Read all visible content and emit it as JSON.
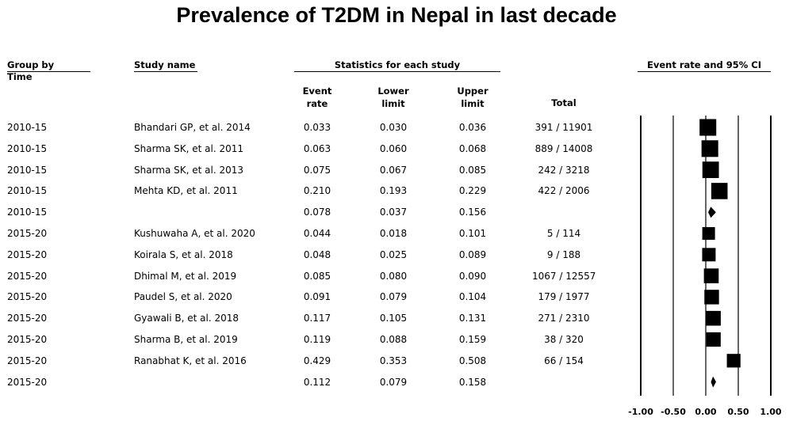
{
  "title": "Prevalence of T2DM in Nepal in last decade",
  "headers": {
    "group_line1": "Group by",
    "group_line2": "Time",
    "study": "Study name",
    "stats": "Statistics for each study",
    "event_line1": "Event",
    "event_line2": "rate",
    "lower_line1": "Lower",
    "lower_line2": "limit",
    "upper_line1": "Upper",
    "upper_line2": "limit",
    "total": "Total",
    "plot": "Event rate and 95% CI"
  },
  "chart_data": {
    "type": "forest",
    "title": "Prevalence of T2DM in Nepal in last decade",
    "xlim": [
      -1.0,
      1.0
    ],
    "ticks": [
      "-1.00",
      "-0.50",
      "0.00",
      "0.50",
      "1.00"
    ],
    "tick_values": [
      -1.0,
      -0.5,
      0.0,
      0.5,
      1.0
    ],
    "rows": [
      {
        "group": "2010-15",
        "study": "Bhandari GP, et al. 2014",
        "rate": "0.033",
        "lower": "0.030",
        "upper": "0.036",
        "total": "391 / 11901",
        "type": "study",
        "weight": 0.92
      },
      {
        "group": "2010-15",
        "study": "Sharma SK, et al. 2011",
        "rate": "0.063",
        "lower": "0.060",
        "upper": "0.068",
        "total": "889 / 14008",
        "type": "study",
        "weight": 0.92
      },
      {
        "group": "2010-15",
        "study": "Sharma SK, et al. 2013",
        "rate": "0.075",
        "lower": "0.067",
        "upper": "0.085",
        "total": "242 / 3218",
        "type": "study",
        "weight": 0.9
      },
      {
        "group": "2010-15",
        "study": "Mehta KD, et al. 2011",
        "rate": "0.210",
        "lower": "0.193",
        "upper": "0.229",
        "total": "422 / 2006",
        "type": "study",
        "weight": 0.88
      },
      {
        "group": "2010-15",
        "study": "",
        "rate": "0.078",
        "lower": "0.037",
        "upper": "0.156",
        "total": "",
        "type": "summary"
      },
      {
        "group": "2015-20",
        "study": "Kushuwaha A, et al. 2020",
        "rate": "0.044",
        "lower": "0.018",
        "upper": "0.101",
        "total": "5 / 114",
        "type": "study",
        "weight": 0.5
      },
      {
        "group": "2015-20",
        "study": "Koirala S, et al. 2018",
        "rate": "0.048",
        "lower": "0.025",
        "upper": "0.089",
        "total": "9 / 188",
        "type": "study",
        "weight": 0.58
      },
      {
        "group": "2015-20",
        "study": "Dhimal M, et al. 2019",
        "rate": "0.085",
        "lower": "0.080",
        "upper": "0.090",
        "total": "1067 / 12557",
        "type": "study",
        "weight": 0.72
      },
      {
        "group": "2015-20",
        "study": "Paudel S, et al. 2020",
        "rate": "0.091",
        "lower": "0.079",
        "upper": "0.104",
        "total": "179 / 1977",
        "type": "study",
        "weight": 0.7
      },
      {
        "group": "2015-20",
        "study": "Gyawali B, et al. 2018",
        "rate": "0.117",
        "lower": "0.105",
        "upper": "0.131",
        "total": "271 / 2310",
        "type": "study",
        "weight": 0.72
      },
      {
        "group": "2015-20",
        "study": "Sharma B, et al. 2019",
        "rate": "0.119",
        "lower": "0.088",
        "upper": "0.159",
        "total": "38 / 320",
        "type": "study",
        "weight": 0.68
      },
      {
        "group": "2015-20",
        "study": "Ranabhat K, et al. 2016",
        "rate": "0.429",
        "lower": "0.353",
        "upper": "0.508",
        "total": "66 / 154",
        "type": "study",
        "weight": 0.6
      },
      {
        "group": "2015-20",
        "study": "",
        "rate": "0.112",
        "lower": "0.079",
        "upper": "0.158",
        "total": "",
        "type": "summary"
      }
    ]
  }
}
